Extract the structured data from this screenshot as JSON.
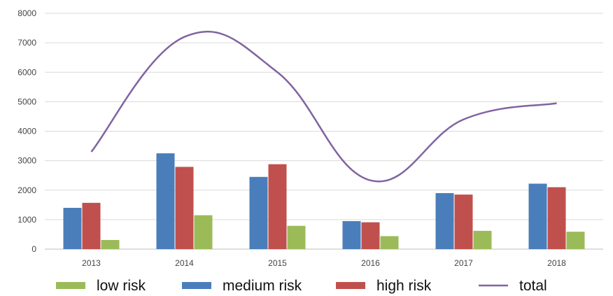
{
  "chart_data": {
    "type": "bar",
    "categories": [
      "2013",
      "2014",
      "2015",
      "2016",
      "2017",
      "2018"
    ],
    "series": [
      {
        "name": "medium risk",
        "type": "bar",
        "color": "#4a7ebb",
        "values": [
          1400,
          3250,
          2450,
          950,
          1900,
          2220
        ]
      },
      {
        "name": "high risk",
        "type": "bar",
        "color": "#c0504d",
        "values": [
          1570,
          2790,
          2880,
          910,
          1850,
          2100
        ]
      },
      {
        "name": "low risk",
        "type": "bar",
        "color": "#9bbb59",
        "values": [
          310,
          1150,
          790,
          440,
          620,
          590
        ]
      },
      {
        "name": "total",
        "type": "line",
        "color": "#8064a2",
        "values": [
          3300,
          7200,
          6000,
          2330,
          4400,
          4950
        ]
      }
    ],
    "legend_order": [
      "low risk",
      "medium risk",
      "high risk",
      "total"
    ],
    "ylim": [
      0,
      8000
    ],
    "yticks": [
      "0",
      "1000",
      "2000",
      "3000",
      "4000",
      "5000",
      "6000",
      "7000",
      "8000"
    ],
    "grid": true,
    "legend_position": "bottom",
    "title": "",
    "xlabel": "",
    "ylabel": ""
  }
}
